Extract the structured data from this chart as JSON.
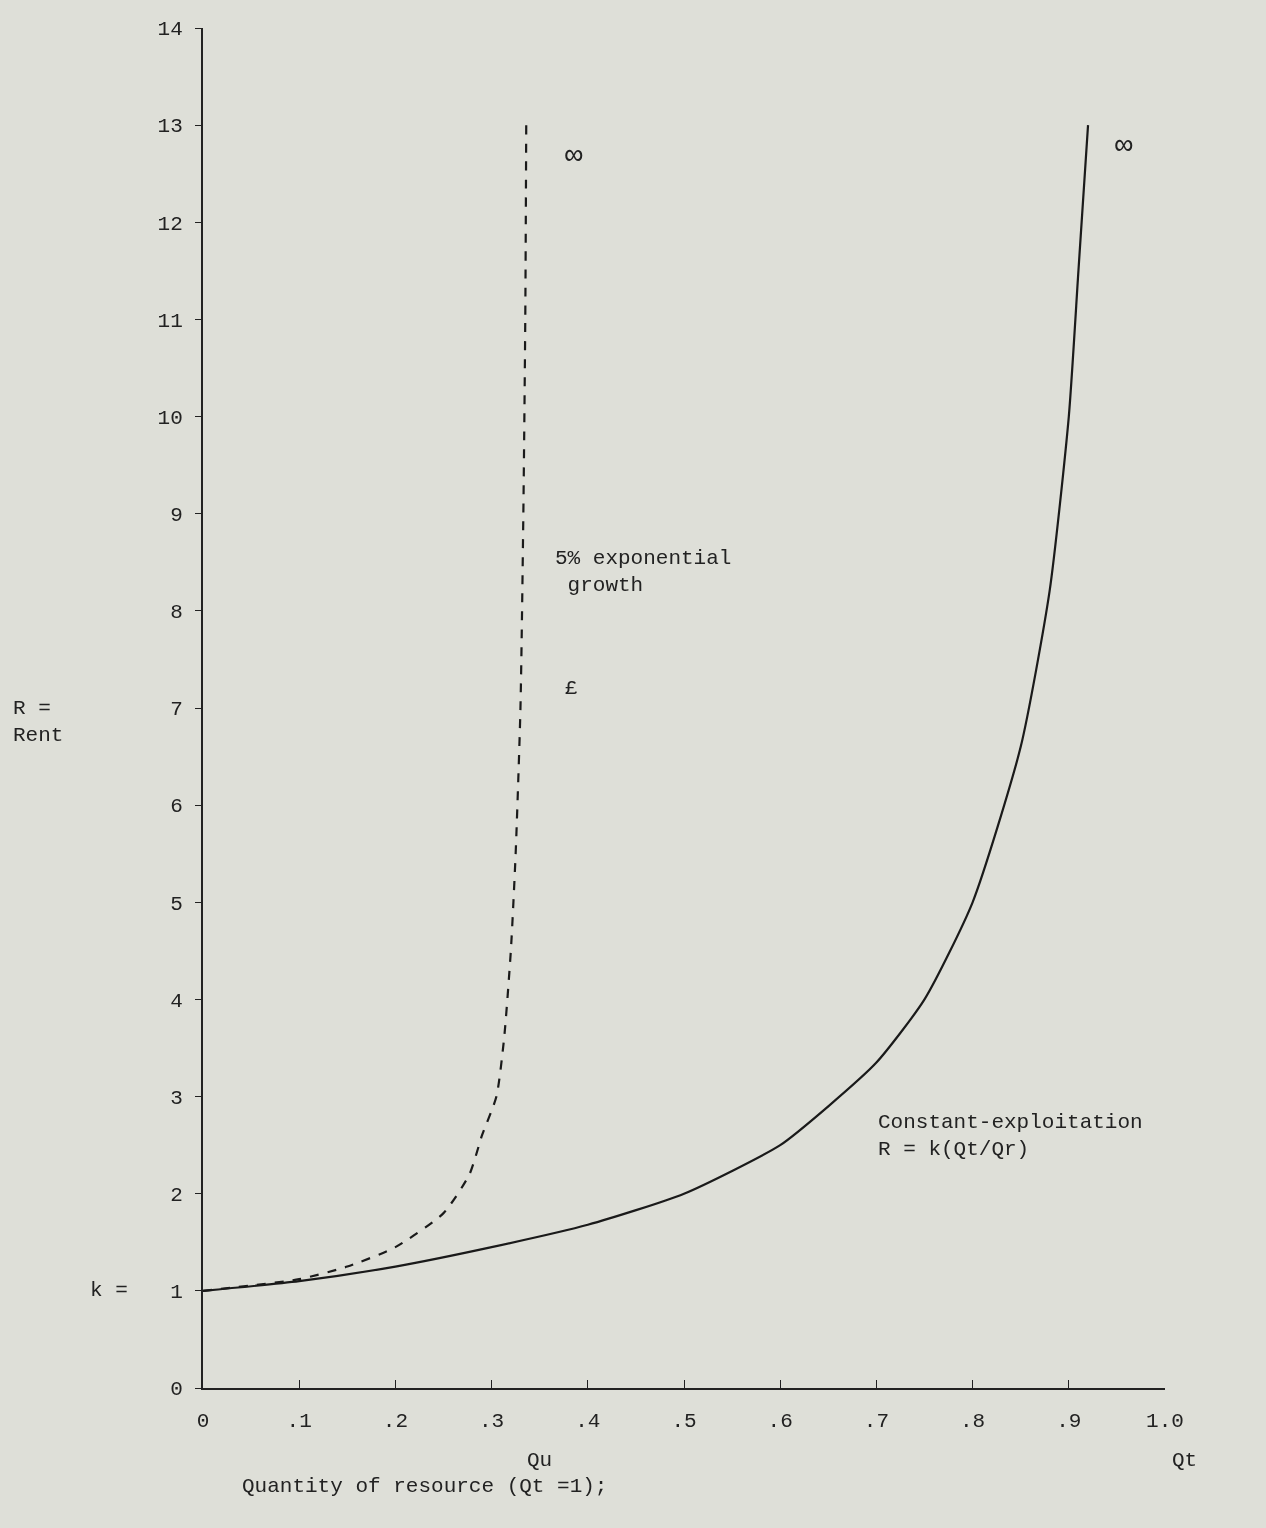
{
  "chart_data": {
    "type": "line",
    "xlabel": "Quantity of resource (Qt =1);",
    "ylabel": "R =\nRent",
    "xlim": [
      0,
      1.0
    ],
    "ylim": [
      0,
      14
    ],
    "xticks": [
      {
        "value": 0,
        "label": "0"
      },
      {
        "value": 0.1,
        "label": ".1"
      },
      {
        "value": 0.2,
        "label": ".2"
      },
      {
        "value": 0.3,
        "label": ".3"
      },
      {
        "value": 0.4,
        "label": ".4"
      },
      {
        "value": 0.5,
        "label": ".5"
      },
      {
        "value": 0.6,
        "label": ".6"
      },
      {
        "value": 0.7,
        "label": ".7"
      },
      {
        "value": 0.8,
        "label": ".8"
      },
      {
        "value": 0.9,
        "label": ".9"
      },
      {
        "value": 1.0,
        "label": "1.0"
      }
    ],
    "yticks": [
      0,
      1,
      2,
      3,
      4,
      5,
      6,
      7,
      8,
      9,
      10,
      11,
      12,
      13,
      14
    ],
    "grid": false,
    "marker": "none",
    "series": [
      {
        "color": "#1a1a1a",
        "line_style": "dashed",
        "x": [
          0,
          0.1,
          0.15,
          0.2,
          0.25,
          0.277,
          0.29,
          0.305,
          0.313,
          0.32,
          0.325,
          0.33,
          0.333,
          0.335,
          0.336
        ],
        "values": [
          1,
          1.12,
          1.25,
          1.45,
          1.8,
          2.2,
          2.6,
          3.0,
          3.6,
          4.5,
          5.5,
          7.0,
          9.0,
          11.0,
          13.0
        ]
      },
      {
        "color": "#1a1a1a",
        "line_style": "solid",
        "x": [
          0,
          0.1,
          0.2,
          0.3,
          0.4,
          0.5,
          0.6,
          0.65,
          0.7,
          0.75,
          0.8,
          0.85,
          0.88,
          0.9,
          0.91,
          0.92
        ],
        "values": [
          1,
          1.1,
          1.25,
          1.45,
          1.68,
          2.0,
          2.5,
          2.9,
          3.35,
          4.0,
          5.0,
          6.6,
          8.2,
          10.0,
          11.5,
          13.0
        ]
      }
    ],
    "annotations": [
      "∞",
      "∞",
      "5% exponential\n growth",
      "£",
      "Constant-exploitation\nR = k(Qt/Qr)",
      "k =",
      "Qu",
      "Qt"
    ]
  }
}
